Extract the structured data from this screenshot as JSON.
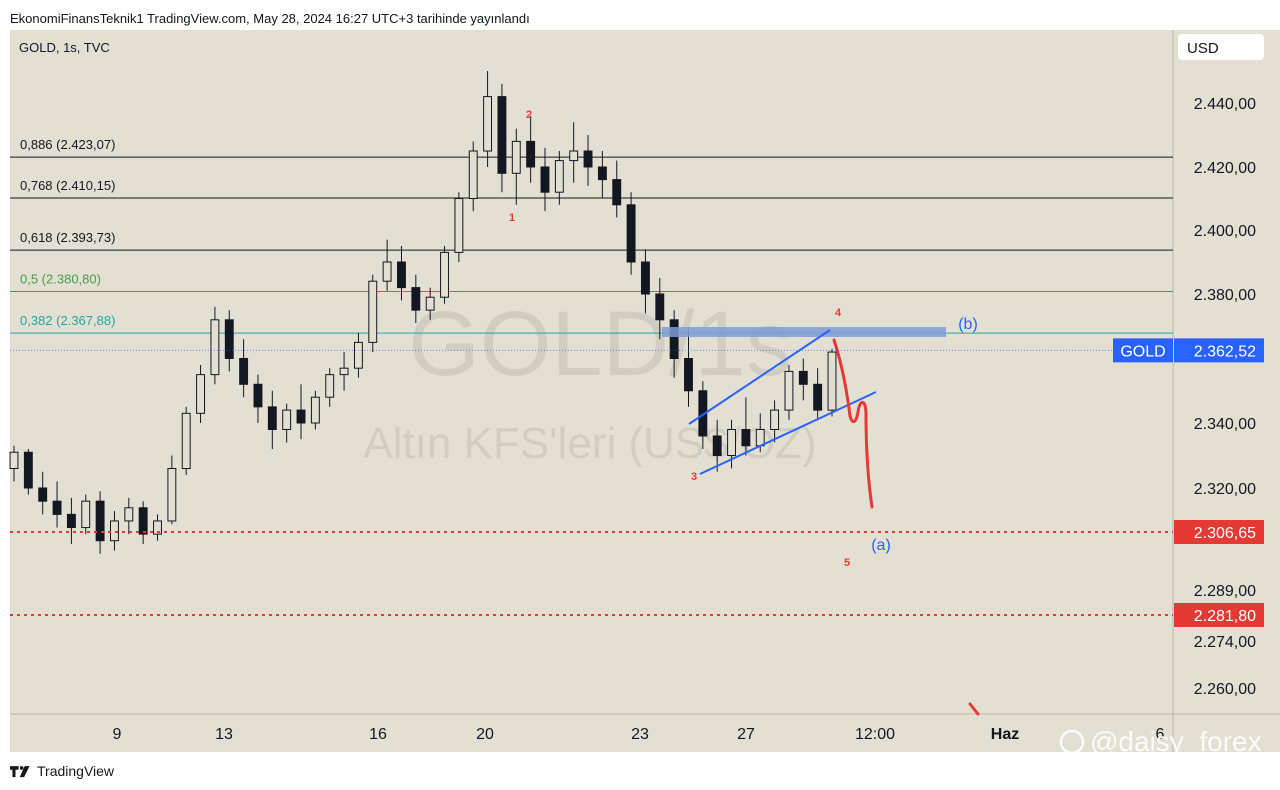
{
  "header": {
    "published": "EkonomiFinansTeknik1 TradingView.com, May 28, 2024 16:27 UTC+3 tarihinde yayınlandı"
  },
  "chart_data": {
    "type": "candlestick-ohlc",
    "symbol_line": "GOLD, 1s, TVC",
    "watermark_symbol": "GOLD, 1s",
    "watermark_text": "GOLD, 1s",
    "watermark_name": "Altın KFS'leri (US$/OZ)",
    "currency": "USD",
    "yticks": [
      {
        "value": 2440.0,
        "label": "2.440,00"
      },
      {
        "value": 2420.0,
        "label": "2.420,00"
      },
      {
        "value": 2400.0,
        "label": "2.400,00"
      },
      {
        "value": 2380.0,
        "label": "2.380,00"
      },
      {
        "value": 2340.0,
        "label": "2.340,00"
      },
      {
        "value": 2320.0,
        "label": "2.320,00"
      },
      {
        "value": 2289.0,
        "label": "2.289,00"
      },
      {
        "value": 2274.0,
        "label": "2.274,00"
      },
      {
        "value": 2260.0,
        "label": "2.260,00"
      }
    ],
    "xticks": [
      {
        "label": "9",
        "bold": false
      },
      {
        "label": "13",
        "bold": false
      },
      {
        "label": "16",
        "bold": false
      },
      {
        "label": "20",
        "bold": false
      },
      {
        "label": "23",
        "bold": false
      },
      {
        "label": "27",
        "bold": false
      },
      {
        "label": "12:00",
        "bold": false
      },
      {
        "label": "Haz",
        "bold": true
      },
      {
        "label": "6",
        "bold": false
      }
    ],
    "fib_levels": [
      {
        "label": "0,886 (2.423,07)",
        "value": 2423.07,
        "color": "#131722"
      },
      {
        "label": "0,768 (2.410,15)",
        "value": 2410.15,
        "color": "#131722"
      },
      {
        "label": "0,618 (2.393,73)",
        "value": 2393.73,
        "color": "#131722"
      },
      {
        "label": "0,5 (2.380,80)",
        "value": 2380.8,
        "color": "#43a047"
      },
      {
        "label": "0,382 (2.367,88)",
        "value": 2367.88,
        "color": "#26a69a"
      }
    ],
    "price_labels": [
      {
        "name": "GOLD",
        "value": "2.362,52",
        "price": 2362.52,
        "color": "#2962ff"
      },
      {
        "name": "",
        "value": "2.306,65",
        "price": 2306.65,
        "color": "#e53935"
      },
      {
        "name": "",
        "value": "2.281,80",
        "price": 2281.8,
        "color": "#e53935"
      }
    ],
    "wave_labels": [
      {
        "text": "1",
        "color": "#e53935"
      },
      {
        "text": "2",
        "color": "#e53935"
      },
      {
        "text": "3",
        "color": "#e53935"
      },
      {
        "text": "4",
        "color": "#e53935"
      },
      {
        "text": "5",
        "color": "#e53935"
      },
      {
        "text": "(b)",
        "color": "#2962ff"
      },
      {
        "text": "(a)",
        "color": "#2962ff"
      }
    ],
    "ohlc": [
      [
        2326,
        2333,
        2322,
        2331
      ],
      [
        2331,
        2332,
        2318,
        2320
      ],
      [
        2320,
        2325,
        2312,
        2316
      ],
      [
        2316,
        2322,
        2308,
        2312
      ],
      [
        2312,
        2317,
        2303,
        2308
      ],
      [
        2308,
        2318,
        2306,
        2316
      ],
      [
        2316,
        2319,
        2300,
        2304
      ],
      [
        2304,
        2313,
        2301,
        2310
      ],
      [
        2310,
        2317,
        2306,
        2314
      ],
      [
        2314,
        2316,
        2303,
        2306
      ],
      [
        2306,
        2312,
        2304,
        2310
      ],
      [
        2310,
        2330,
        2309,
        2326
      ],
      [
        2326,
        2345,
        2324,
        2343
      ],
      [
        2343,
        2358,
        2340,
        2355
      ],
      [
        2355,
        2376,
        2352,
        2372
      ],
      [
        2372,
        2375,
        2356,
        2360
      ],
      [
        2360,
        2366,
        2348,
        2352
      ],
      [
        2352,
        2355,
        2340,
        2345
      ],
      [
        2345,
        2350,
        2332,
        2338
      ],
      [
        2338,
        2346,
        2334,
        2344
      ],
      [
        2344,
        2352,
        2335,
        2340
      ],
      [
        2340,
        2350,
        2338,
        2348
      ],
      [
        2348,
        2357,
        2345,
        2355
      ],
      [
        2355,
        2362,
        2350,
        2357
      ],
      [
        2357,
        2368,
        2354,
        2365
      ],
      [
        2365,
        2386,
        2362,
        2384
      ],
      [
        2384,
        2397,
        2381,
        2390
      ],
      [
        2390,
        2395,
        2378,
        2382
      ],
      [
        2382,
        2386,
        2371,
        2375
      ],
      [
        2375,
        2382,
        2372,
        2379
      ],
      [
        2379,
        2395,
        2377,
        2393
      ],
      [
        2393,
        2412,
        2390,
        2410
      ],
      [
        2410,
        2428,
        2406,
        2425
      ],
      [
        2425,
        2450,
        2420,
        2442
      ],
      [
        2442,
        2446,
        2412,
        2418
      ],
      [
        2418,
        2432,
        2408,
        2428
      ],
      [
        2428,
        2436,
        2415,
        2420
      ],
      [
        2420,
        2426,
        2406,
        2412
      ],
      [
        2412,
        2425,
        2408,
        2422
      ],
      [
        2422,
        2434,
        2415,
        2425
      ],
      [
        2425,
        2430,
        2414,
        2420
      ],
      [
        2420,
        2425,
        2410,
        2416
      ],
      [
        2416,
        2422,
        2404,
        2408
      ],
      [
        2408,
        2412,
        2386,
        2390
      ],
      [
        2390,
        2394,
        2374,
        2380
      ],
      [
        2380,
        2385,
        2366,
        2372
      ],
      [
        2372,
        2375,
        2354,
        2360
      ],
      [
        2360,
        2369,
        2345,
        2350
      ],
      [
        2350,
        2353,
        2332,
        2336
      ],
      [
        2336,
        2341,
        2325,
        2330
      ],
      [
        2330,
        2341,
        2326,
        2338
      ],
      [
        2338,
        2348,
        2330,
        2333
      ],
      [
        2333,
        2343,
        2331,
        2338
      ],
      [
        2338,
        2347,
        2334,
        2344
      ],
      [
        2344,
        2358,
        2341,
        2356
      ],
      [
        2356,
        2360,
        2347,
        2352
      ],
      [
        2352,
        2357,
        2341,
        2344
      ],
      [
        2344,
        2363,
        2342,
        2362
      ]
    ],
    "candle_color": "#131722"
  },
  "footer": {
    "brand": "TradingView",
    "watermark_right": "@daisy_forex"
  }
}
